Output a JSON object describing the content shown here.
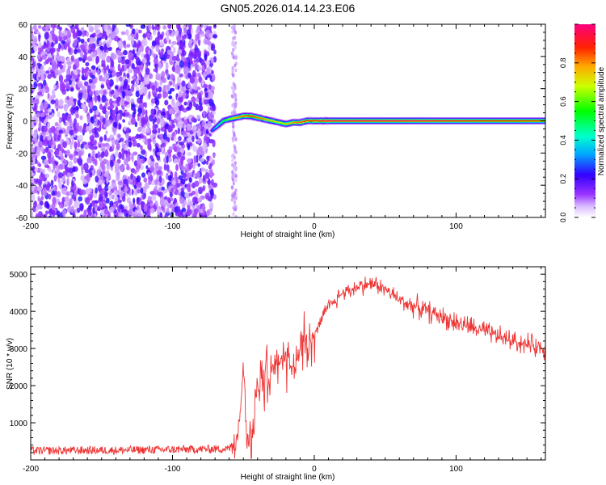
{
  "title": "GN05.2026.014.14.23.E06",
  "chart_data": [
    {
      "type": "heatmap",
      "title": "GN05.2026.014.14.23.E06",
      "xlabel": "Height of straight line (km)",
      "ylabel": "Frequency (Hz)",
      "xlim": [
        -200,
        163
      ],
      "ylim": [
        -60,
        60
      ],
      "xticks": [
        -200,
        -100,
        0,
        100
      ],
      "yticks": [
        -60,
        -40,
        -20,
        0,
        20,
        40,
        60
      ],
      "noise_region_x": [
        -200,
        -70
      ],
      "faint_noise_x": [
        -58,
        -55
      ],
      "ridge": {
        "x": [
          -72,
          -68,
          -64,
          -60,
          -55,
          -50,
          -45,
          -40,
          -35,
          -30,
          -25,
          -20,
          -15,
          -10,
          -5,
          0,
          5,
          10,
          20,
          40,
          60,
          80,
          100,
          120,
          140,
          163
        ],
        "freq": [
          -6,
          -3,
          0,
          1,
          2,
          3,
          3,
          2,
          1,
          0,
          -1,
          -2,
          -1,
          -1,
          0,
          0,
          0,
          0,
          0,
          0,
          0,
          0,
          0,
          0,
          0,
          0
        ],
        "amplitude": [
          0.3,
          0.45,
          0.55,
          0.65,
          0.8,
          0.85,
          0.9,
          0.85,
          0.8,
          0.75,
          0.7,
          0.75,
          0.8,
          0.85,
          0.9,
          0.9,
          0.95,
          1.0,
          1.0,
          1.0,
          1.0,
          0.98,
          0.95,
          0.92,
          0.9,
          0.88
        ]
      },
      "colorbar": {
        "label": "Normalized spectral amplitude",
        "range": [
          0,
          1
        ],
        "ticks": [
          0.0,
          0.2,
          0.4,
          0.6,
          0.8
        ],
        "tick_labels": [
          "0.0",
          "0.2",
          "0.4",
          "0.6",
          "0.8"
        ],
        "colors": [
          "#ffffff",
          "#cc99ff",
          "#8000ff",
          "#0000ff",
          "#00ffff",
          "#00ff00",
          "#ffff00",
          "#ff8000",
          "#ff0000",
          "#ff0080"
        ]
      }
    },
    {
      "type": "line",
      "xlabel": "Height of straight line (km)",
      "ylabel": "SNR (10 * v/v)",
      "xlim": [
        -200,
        163
      ],
      "ylim": [
        0,
        5200
      ],
      "xticks": [
        -200,
        -100,
        0,
        100
      ],
      "yticks": [
        1000,
        2000,
        3000,
        4000,
        5000
      ],
      "color": "#ee3333",
      "series": [
        {
          "x": [
            -200,
            -180,
            -160,
            -140,
            -120,
            -100,
            -80,
            -60,
            -55,
            -52,
            -50,
            -48,
            -45,
            -43,
            -40,
            -35,
            -30,
            -25,
            -20,
            -15,
            -10,
            -5,
            0,
            5,
            10,
            20,
            30,
            40,
            45,
            50,
            60,
            80,
            100,
            120,
            140,
            163
          ],
          "y": [
            250,
            250,
            260,
            260,
            270,
            280,
            290,
            300,
            600,
            1400,
            2600,
            1000,
            300,
            1200,
            1900,
            2400,
            2500,
            2700,
            2900,
            2400,
            3000,
            3300,
            3400,
            3800,
            4100,
            4500,
            4650,
            4750,
            4700,
            4600,
            4300,
            4000,
            3700,
            3450,
            3200,
            3000
          ]
        }
      ]
    }
  ]
}
